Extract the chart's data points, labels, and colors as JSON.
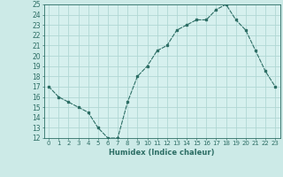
{
  "x": [
    0,
    1,
    2,
    3,
    4,
    5,
    6,
    7,
    8,
    9,
    10,
    11,
    12,
    13,
    14,
    15,
    16,
    17,
    18,
    19,
    20,
    21,
    22,
    23
  ],
  "y": [
    17,
    16,
    15.5,
    15,
    14.5,
    13,
    12,
    12,
    15.5,
    18,
    19,
    20.5,
    21,
    22.5,
    23,
    23.5,
    23.5,
    24.5,
    25,
    23.5,
    22.5,
    20.5,
    18.5,
    17
  ],
  "line_color": "#2d6e65",
  "marker": "s",
  "marker_size": 2,
  "bg_color": "#cceae7",
  "plot_bg_color": "#d6f0ee",
  "grid_color": "#b0d8d4",
  "xlabel": "Humidex (Indice chaleur)",
  "ylim": [
    12,
    25
  ],
  "xlim": [
    -0.5,
    23.5
  ],
  "yticks": [
    12,
    13,
    14,
    15,
    16,
    17,
    18,
    19,
    20,
    21,
    22,
    23,
    24,
    25
  ],
  "xticks": [
    0,
    1,
    2,
    3,
    4,
    5,
    6,
    7,
    8,
    9,
    10,
    11,
    12,
    13,
    14,
    15,
    16,
    17,
    18,
    19,
    20,
    21,
    22,
    23
  ]
}
